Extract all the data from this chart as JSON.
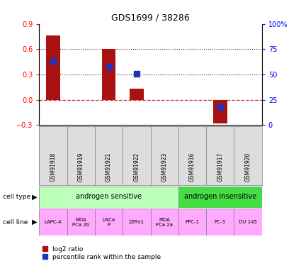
{
  "title": "GDS1699 / 38286",
  "samples": [
    "GSM91918",
    "GSM91919",
    "GSM91921",
    "GSM91922",
    "GSM91923",
    "GSM91916",
    "GSM91917",
    "GSM91920"
  ],
  "log2_ratio": [
    0.76,
    0.0,
    0.605,
    0.13,
    0.0,
    0.0,
    -0.28,
    0.0
  ],
  "percentile_rank_pct": [
    63.5,
    null,
    57.5,
    50.5,
    null,
    null,
    18.0,
    null
  ],
  "ylim": [
    -0.3,
    0.9
  ],
  "y2lim": [
    0,
    100
  ],
  "yticks": [
    -0.3,
    0.0,
    0.3,
    0.6,
    0.9
  ],
  "y2ticks": [
    0,
    25,
    50,
    75,
    100
  ],
  "y2ticklabels": [
    "0",
    "25",
    "50",
    "75",
    "100%"
  ],
  "bar_color": "#aa1111",
  "dot_color": "#2233bb",
  "zero_line_color": "#cc3333",
  "dotted_line_color": "#333333",
  "cell_type_groups": [
    {
      "label": "androgen sensitive",
      "start": 0,
      "end": 5,
      "color": "#bbffbb"
    },
    {
      "label": "androgen insensitive",
      "start": 5,
      "end": 8,
      "color": "#44dd44"
    }
  ],
  "cell_lines": [
    {
      "label": "LAPC-4",
      "col": 0
    },
    {
      "label": "MDA\nPCa 2b",
      "col": 1
    },
    {
      "label": "LNCa\nP",
      "col": 2
    },
    {
      "label": "22Rv1",
      "col": 3
    },
    {
      "label": "MDA\nPCa 2a",
      "col": 4
    },
    {
      "label": "PPC-1",
      "col": 5
    },
    {
      "label": "PC-3",
      "col": 6
    },
    {
      "label": "DU 145",
      "col": 7
    }
  ],
  "cell_line_color": "#ffaaff",
  "sample_bg_color": "#dddddd",
  "bar_width": 0.5,
  "dot_size": 40,
  "legend_items": [
    {
      "color": "#aa1111",
      "label": "log2 ratio"
    },
    {
      "color": "#2233bb",
      "label": "percentile rank within the sample"
    }
  ]
}
